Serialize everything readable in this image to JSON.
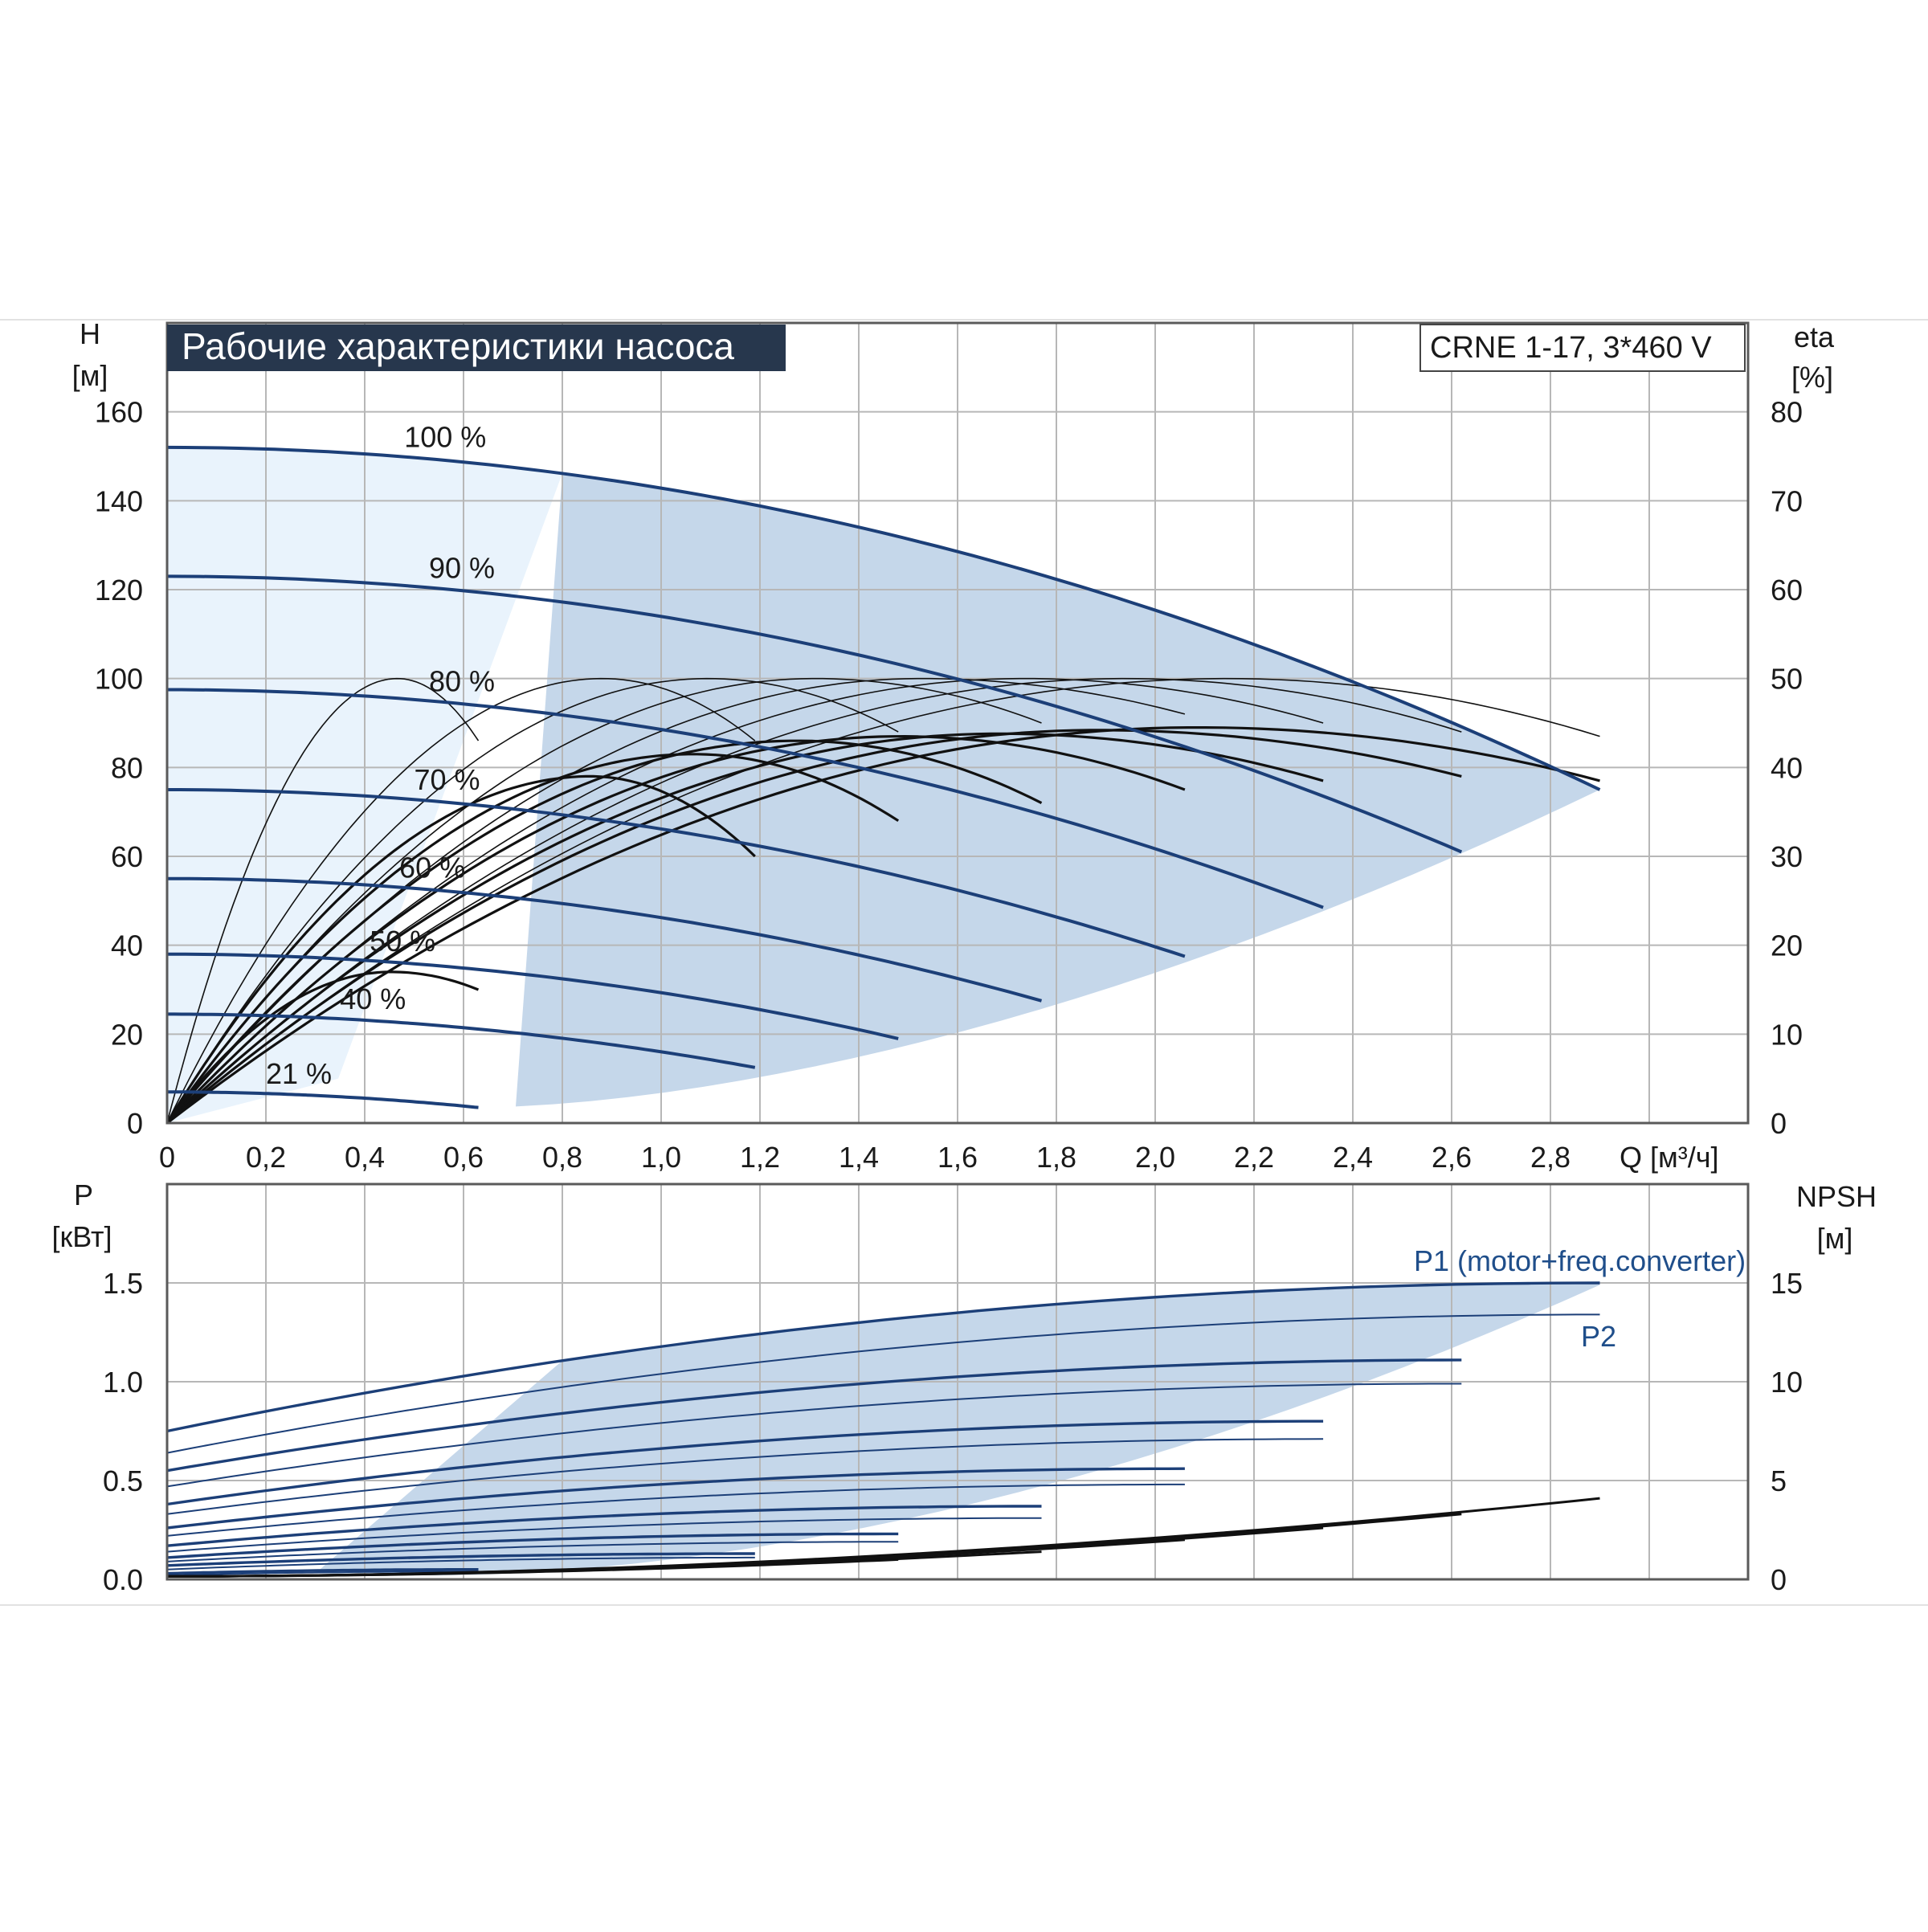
{
  "chart_data": [
    {
      "type": "line",
      "title": "Рабочие характеристики насоса",
      "model_label": "CRNE 1-17, 3*460 V",
      "x_label": "Q [м³/ч]",
      "y_label": "H",
      "y_unit": "[м]",
      "y2_label": "eta",
      "y2_unit": "[%]",
      "x_ticks": [
        "0",
        "0,2",
        "0,4",
        "0,6",
        "0,8",
        "1,0",
        "1,2",
        "1,4",
        "1,6",
        "1,8",
        "2,0",
        "2,2",
        "2,4",
        "2,6",
        "2,8"
      ],
      "y_ticks": [
        "0",
        "20",
        "40",
        "60",
        "80",
        "100",
        "120",
        "140",
        "160"
      ],
      "y2_ticks": [
        "0",
        "10",
        "20",
        "30",
        "40",
        "50",
        "60",
        "70",
        "80"
      ],
      "xlim": [
        0,
        3.2
      ],
      "ylim": [
        0,
        180
      ],
      "y2lim": [
        0,
        90
      ],
      "grid": true,
      "colors": {
        "head": "#1c3f78",
        "efficiency": "#111111",
        "region": "#c5d7ea",
        "region_light": "#e9f3fc",
        "title_bg": "#27374d"
      },
      "head_curves": [
        {
          "label": "100 %",
          "q_max": 2.9,
          "h0": 152,
          "h_end": 75
        },
        {
          "label": "90 %",
          "q_max": 2.62,
          "h0": 123,
          "h_end": 61
        },
        {
          "label": "80 %",
          "q_max": 2.34,
          "h0": 97.5,
          "h_end": 48.5
        },
        {
          "label": "70 %",
          "q_max": 2.06,
          "h0": 75,
          "h_end": 37.5
        },
        {
          "label": "60 %",
          "q_max": 1.77,
          "h0": 55,
          "h_end": 27.5
        },
        {
          "label": "50 %",
          "q_max": 1.48,
          "h0": 38,
          "h_end": 19
        },
        {
          "label": "40 %",
          "q_max": 1.19,
          "h0": 24.5,
          "h_end": 12.5
        },
        {
          "label": "21 %",
          "q_max": 0.63,
          "h0": 7,
          "h_end": 3.5
        }
      ],
      "efficiency_curves": [
        {
          "q_end": 2.9,
          "eta_peak": 44.5,
          "eta_end": 38.5
        },
        {
          "q_end": 2.62,
          "eta_peak": 44.2,
          "eta_end": 39
        },
        {
          "q_end": 2.34,
          "eta_peak": 43.8,
          "eta_end": 38.5
        },
        {
          "q_end": 2.06,
          "eta_peak": 43.5,
          "eta_end": 37.5
        },
        {
          "q_end": 1.77,
          "eta_peak": 43,
          "eta_end": 36
        },
        {
          "q_end": 1.48,
          "eta_peak": 41.5,
          "eta_end": 34
        },
        {
          "q_end": 1.19,
          "eta_peak": 39,
          "eta_end": 30
        },
        {
          "q_end": 0.63,
          "eta_peak": 17,
          "eta_end": 15
        }
      ],
      "efficiency_max_curves": [
        {
          "q_end": 0.63,
          "eta_peak": 50,
          "eta_end": 43
        },
        {
          "q_end": 1.19,
          "eta_peak": 50,
          "eta_end": 43
        },
        {
          "q_end": 1.48,
          "eta_peak": 50,
          "eta_end": 44
        },
        {
          "q_end": 1.77,
          "eta_peak": 50,
          "eta_end": 45
        },
        {
          "q_end": 2.06,
          "eta_peak": 50,
          "eta_end": 46
        },
        {
          "q_end": 2.34,
          "eta_peak": 50,
          "eta_end": 45
        },
        {
          "q_end": 2.62,
          "eta_peak": 50,
          "eta_end": 44
        },
        {
          "q_end": 2.9,
          "eta_peak": 50,
          "eta_end": 43.5
        }
      ]
    },
    {
      "type": "line",
      "y_label": "P",
      "y_unit": "[кВт]",
      "y2_label": "NPSH",
      "y2_unit": "[м]",
      "y_ticks": [
        "0.0",
        "0.5",
        "1.0",
        "1.5"
      ],
      "y2_ticks": [
        "0",
        "5",
        "10",
        "15"
      ],
      "xlim": [
        0,
        3.2
      ],
      "ylim": [
        0,
        2.0
      ],
      "y2lim": [
        0,
        20
      ],
      "grid": true,
      "series_labels": {
        "p1": "P1 (motor+freq.converter)",
        "p2": "P2"
      },
      "p1_curves": [
        {
          "q_end": 2.9,
          "p0": 0.75,
          "p_end": 1.5
        },
        {
          "q_end": 2.62,
          "p0": 0.55,
          "p_end": 1.11
        },
        {
          "q_end": 2.34,
          "p0": 0.38,
          "p_end": 0.8
        },
        {
          "q_end": 2.06,
          "p0": 0.26,
          "p_end": 0.56
        },
        {
          "q_end": 1.77,
          "p0": 0.17,
          "p_end": 0.37
        },
        {
          "q_end": 1.48,
          "p0": 0.11,
          "p_end": 0.23
        },
        {
          "q_end": 1.19,
          "p0": 0.07,
          "p_end": 0.13
        },
        {
          "q_end": 0.63,
          "p0": 0.03,
          "p_end": 0.05
        }
      ],
      "p2_curves": [
        {
          "q_end": 2.9,
          "p0": 0.64,
          "p_end": 1.34
        },
        {
          "q_end": 2.62,
          "p0": 0.47,
          "p_end": 0.99
        },
        {
          "q_end": 2.34,
          "p0": 0.33,
          "p_end": 0.71
        },
        {
          "q_end": 2.06,
          "p0": 0.22,
          "p_end": 0.48
        },
        {
          "q_end": 1.77,
          "p0": 0.14,
          "p_end": 0.31
        },
        {
          "q_end": 1.48,
          "p0": 0.09,
          "p_end": 0.19
        },
        {
          "q_end": 1.19,
          "p0": 0.05,
          "p_end": 0.11
        },
        {
          "q_end": 0.63,
          "p0": 0.02,
          "p_end": 0.04
        }
      ],
      "npsh_curves": [
        {
          "q_end": 2.9,
          "n_end": 4.1
        },
        {
          "q_end": 2.62,
          "n_end": 3.3
        },
        {
          "q_end": 2.34,
          "n_end": 2.6
        },
        {
          "q_end": 2.06,
          "n_end": 2.0
        },
        {
          "q_end": 1.77,
          "n_end": 1.4
        },
        {
          "q_end": 1.48,
          "n_end": 1.0
        }
      ]
    }
  ]
}
